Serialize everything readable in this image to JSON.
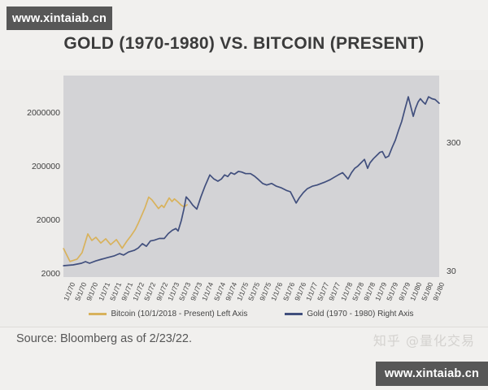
{
  "page": {
    "watermark_top": "www.xintaiab.cn",
    "watermark_bottom": "www.xintaiab.cn",
    "title": "GOLD (1970-1980) VS. BITCOIN (PRESENT)",
    "source": "Source: Bloomberg as of 2/23/22.",
    "social_watermark": "知乎 @量化交易"
  },
  "colors": {
    "page_bg": "#f1f0ee",
    "plot_bg": "#d3d3d6",
    "badge_bg": "#575757",
    "bitcoin_line": "#d8b25c",
    "gold_line": "#414f7d"
  },
  "chart_data": {
    "type": "line",
    "title": "GOLD (1970-1980) VS. BITCOIN (PRESENT)",
    "grid": false,
    "legend_position": "bottom",
    "x_months_per_tick": 4,
    "x_domain_months": [
      -0.85,
      129.4
    ],
    "x_tick_labels": [
      "1/1/70",
      "5/1/70",
      "9/1/70",
      "1/1/71",
      "5/1/71",
      "9/1/71",
      "1/1/72",
      "5/1/72",
      "9/1/72",
      "1/1/73",
      "5/1/73",
      "9/1/73",
      "1/1/74",
      "5/1/74",
      "9/1/74",
      "1/1/75",
      "5/1/75",
      "9/1/75",
      "1/1/76",
      "5/1/76",
      "9/1/76",
      "1/1/77",
      "5/1/77",
      "9/1/77",
      "1/1/78",
      "5/1/78",
      "9/1/78",
      "1/1/79",
      "5/1/79",
      "9/1/79",
      "1/1/80",
      "5/1/80",
      "9/1/80"
    ],
    "left_axis": {
      "scale": "log",
      "ticks": [
        2000000,
        200000,
        20000,
        2000
      ],
      "range": [
        1740,
        9970000
      ]
    },
    "right_axis": {
      "scale": "log",
      "ticks": [
        300,
        30
      ],
      "range": [
        27.5,
        1000
      ]
    },
    "series": [
      {
        "name": "Bitcoin (10/1/2018 - Present) Left Axis",
        "axis": "left",
        "color": "#d8b25c",
        "points": [
          [
            -0.8,
            5900
          ],
          [
            1.4,
            3400
          ],
          [
            3.9,
            3760
          ],
          [
            5.6,
            4960
          ],
          [
            7.6,
            11100
          ],
          [
            9,
            8400
          ],
          [
            10.4,
            9600
          ],
          [
            12.1,
            7500
          ],
          [
            13.8,
            9000
          ],
          [
            15.5,
            7000
          ],
          [
            17.5,
            8700
          ],
          [
            19.5,
            6000
          ],
          [
            21.1,
            8100
          ],
          [
            22.6,
            10300
          ],
          [
            24,
            13300
          ],
          [
            25.1,
            17600
          ],
          [
            26.2,
            24000
          ],
          [
            27.4,
            34000
          ],
          [
            28.7,
            54000
          ],
          [
            29.8,
            48000
          ],
          [
            32.1,
            33000
          ],
          [
            33.2,
            38000
          ],
          [
            34,
            34500
          ],
          [
            34.8,
            42000
          ],
          [
            35.8,
            52000
          ],
          [
            36.8,
            44500
          ],
          [
            37.6,
            50000
          ],
          [
            38.8,
            44000
          ],
          [
            40,
            38000
          ],
          [
            41,
            35500
          ],
          [
            42,
            38800
          ]
        ]
      },
      {
        "name": "Gold (1970 - 1980) Right Axis",
        "axis": "right",
        "color": "#414f7d",
        "points": [
          [
            -0.8,
            33.7
          ],
          [
            2.5,
            34.2
          ],
          [
            5.4,
            35.2
          ],
          [
            6.8,
            36.2
          ],
          [
            8.2,
            35.2
          ],
          [
            10.4,
            36.7
          ],
          [
            12.4,
            37.8
          ],
          [
            14.4,
            38.9
          ],
          [
            16.6,
            40
          ],
          [
            18.6,
            41.8
          ],
          [
            20,
            40.7
          ],
          [
            21.7,
            43
          ],
          [
            23.7,
            44.3
          ],
          [
            25.1,
            46.2
          ],
          [
            26.5,
            49.9
          ],
          [
            27.9,
            47.6
          ],
          [
            29.3,
            52.3
          ],
          [
            30.7,
            53.1
          ],
          [
            32.4,
            54.7
          ],
          [
            34.1,
            54.7
          ],
          [
            35.5,
            59.7
          ],
          [
            36.9,
            63.4
          ],
          [
            38.1,
            65.3
          ],
          [
            38.9,
            62.5
          ],
          [
            40,
            75.3
          ],
          [
            40.9,
            92.4
          ],
          [
            41.7,
            115
          ],
          [
            42.9,
            107
          ],
          [
            44,
            99
          ],
          [
            45.4,
            92.4
          ],
          [
            46.8,
            115
          ],
          [
            48.2,
            139
          ],
          [
            49.9,
            170
          ],
          [
            51.3,
            158
          ],
          [
            52.7,
            152
          ],
          [
            53.9,
            158
          ],
          [
            55,
            170
          ],
          [
            56.1,
            165
          ],
          [
            57.2,
            177
          ],
          [
            58.4,
            172
          ],
          [
            59.8,
            181
          ],
          [
            60.9,
            179
          ],
          [
            62.3,
            174
          ],
          [
            64,
            174
          ],
          [
            65.4,
            166
          ],
          [
            66.8,
            156
          ],
          [
            68.2,
            146
          ],
          [
            69.6,
            142
          ],
          [
            71.3,
            146
          ],
          [
            73,
            139
          ],
          [
            74.7,
            135
          ],
          [
            76.4,
            129
          ],
          [
            77.8,
            126
          ],
          [
            78.7,
            115
          ],
          [
            79.8,
            103
          ],
          [
            80.9,
            113
          ],
          [
            82.3,
            124
          ],
          [
            83.7,
            133
          ],
          [
            85.4,
            139
          ],
          [
            87.1,
            142
          ],
          [
            88.5,
            146
          ],
          [
            89.9,
            150
          ],
          [
            91.6,
            156
          ],
          [
            93,
            163
          ],
          [
            94.4,
            170
          ],
          [
            95.9,
            177
          ],
          [
            97,
            166
          ],
          [
            97.8,
            158
          ],
          [
            99,
            177
          ],
          [
            100.1,
            191
          ],
          [
            101.2,
            199
          ],
          [
            102.3,
            211
          ],
          [
            103.5,
            224
          ],
          [
            104.6,
            191
          ],
          [
            105.4,
            211
          ],
          [
            106.6,
            227
          ],
          [
            107.7,
            240
          ],
          [
            108.8,
            254
          ],
          [
            109.7,
            258
          ],
          [
            110.8,
            231
          ],
          [
            111.9,
            238
          ],
          [
            113.1,
            278
          ],
          [
            114.2,
            316
          ],
          [
            115.3,
            376
          ],
          [
            116.4,
            441
          ],
          [
            117.6,
            557
          ],
          [
            118.7,
            685
          ],
          [
            120.4,
            483
          ],
          [
            121.2,
            557
          ],
          [
            122.1,
            625
          ],
          [
            122.9,
            662
          ],
          [
            123.8,
            625
          ],
          [
            124.6,
            601
          ],
          [
            125.7,
            685
          ],
          [
            126.9,
            662
          ],
          [
            128,
            652
          ],
          [
            129.4,
            610
          ]
        ]
      }
    ]
  }
}
